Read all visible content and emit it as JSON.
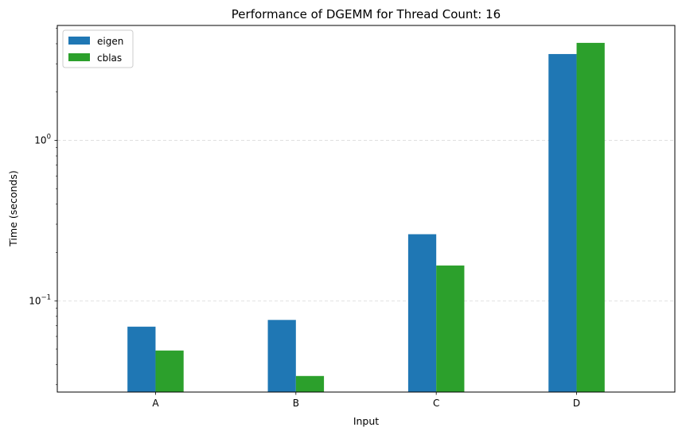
{
  "chart_data": {
    "type": "bar",
    "title": "Performance of DGEMM for Thread Count: 16",
    "xlabel": "Input",
    "ylabel": "Time (seconds)",
    "categories": [
      "A",
      "B",
      "C",
      "D"
    ],
    "y_scale": "log",
    "ylim": [
      0.027,
      5.2
    ],
    "y_ticks": [
      {
        "value": 0.1,
        "base": "10",
        "exp": "−1"
      },
      {
        "value": 1,
        "base": "10",
        "exp": "0"
      }
    ],
    "grid": "y-major-dashed",
    "legend_position": "top-left",
    "series": [
      {
        "name": "eigen",
        "color": "#1f77b4",
        "values": [
          0.069,
          0.076,
          0.26,
          3.45
        ]
      },
      {
        "name": "cblas",
        "color": "#2ca02c",
        "values": [
          0.049,
          0.034,
          0.166,
          4.05
        ]
      }
    ]
  }
}
